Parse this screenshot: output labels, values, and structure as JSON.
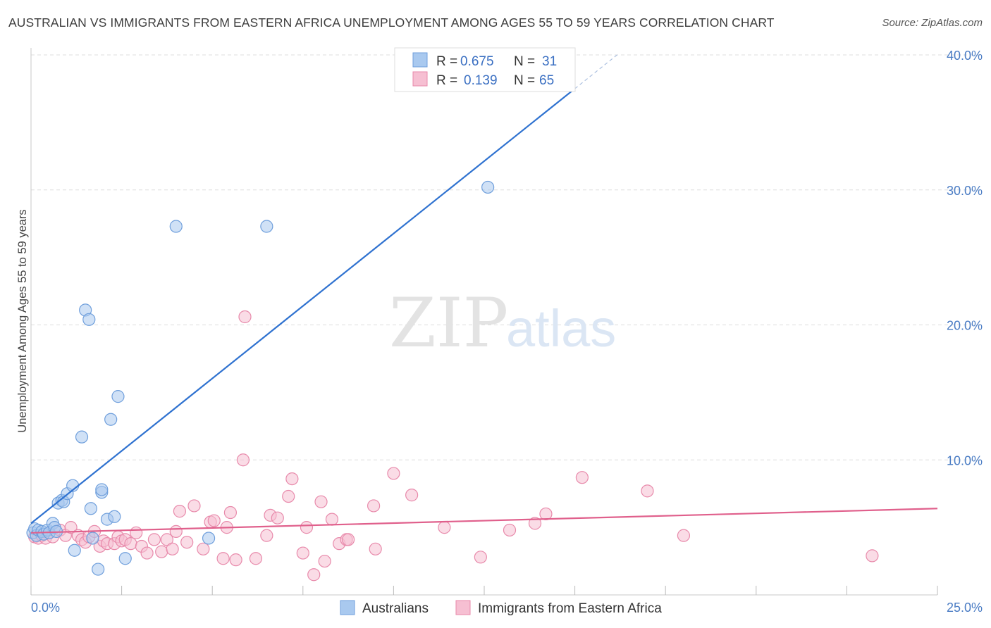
{
  "header": {
    "title": "AUSTRALIAN VS IMMIGRANTS FROM EASTERN AFRICA UNEMPLOYMENT AMONG AGES 55 TO 59 YEARS CORRELATION CHART",
    "source": "Source: ZipAtlas.com"
  },
  "watermark": {
    "zip": "ZIP",
    "atlas": "atlas"
  },
  "colors": {
    "blue_fill": "#a9c9ef",
    "blue_stroke": "#6f9fdc",
    "blue_line": "#2f72d0",
    "pink_fill": "#f6bfd2",
    "pink_stroke": "#e88aab",
    "pink_line": "#e0608c",
    "tick_text": "#4a7cc4",
    "grid": "#dddddd"
  },
  "legend": {
    "r_label": "R =",
    "n_label": "N =",
    "rows": [
      {
        "r": "0.675",
        "n": "31"
      },
      {
        "r": "0.139",
        "n": "65"
      }
    ]
  },
  "chart_data": {
    "type": "scatter",
    "title": "AUSTRALIAN VS IMMIGRANTS FROM EASTERN AFRICA UNEMPLOYMENT AMONG AGES 55 TO 59 YEARS CORRELATION CHART",
    "xlabel": "",
    "ylabel": "Unemployment Among Ages 55 to 59 years",
    "xlim": [
      0,
      25
    ],
    "ylim": [
      0,
      40
    ],
    "x_tick_labels": [
      "0.0%",
      "25.0%"
    ],
    "y_ticks": [
      10,
      20,
      30,
      40
    ],
    "y_tick_labels": [
      "10.0%",
      "20.0%",
      "30.0%",
      "40.0%"
    ],
    "grid": true,
    "legend_position": "top-center",
    "series": [
      {
        "name": "Australians",
        "r": 0.675,
        "n": 31,
        "trend": {
          "x0": 0,
          "y0": 5.3,
          "x1": 15.0,
          "y1": 37.5,
          "dashed_to_x": 16.2
        },
        "points": [
          [
            0.05,
            4.6
          ],
          [
            0.1,
            4.9
          ],
          [
            0.15,
            4.4
          ],
          [
            0.2,
            4.8
          ],
          [
            0.3,
            4.7
          ],
          [
            0.35,
            4.5
          ],
          [
            0.45,
            4.8
          ],
          [
            0.5,
            4.6
          ],
          [
            0.6,
            5.3
          ],
          [
            0.65,
            5.0
          ],
          [
            0.7,
            4.7
          ],
          [
            0.75,
            6.8
          ],
          [
            0.85,
            7.0
          ],
          [
            0.9,
            6.9
          ],
          [
            1.0,
            7.5
          ],
          [
            1.15,
            8.1
          ],
          [
            1.2,
            3.3
          ],
          [
            1.4,
            11.7
          ],
          [
            1.5,
            21.1
          ],
          [
            1.6,
            20.4
          ],
          [
            1.65,
            6.4
          ],
          [
            1.7,
            4.2
          ],
          [
            1.85,
            1.9
          ],
          [
            1.95,
            7.6
          ],
          [
            1.95,
            7.8
          ],
          [
            2.1,
            5.6
          ],
          [
            2.2,
            13.0
          ],
          [
            2.3,
            5.8
          ],
          [
            2.4,
            14.7
          ],
          [
            2.6,
            2.7
          ],
          [
            4.0,
            27.3
          ],
          [
            4.9,
            4.2
          ],
          [
            6.5,
            27.3
          ],
          [
            12.6,
            30.2
          ]
        ]
      },
      {
        "name": "Immigrants from Eastern Africa",
        "r": 0.139,
        "n": 65,
        "trend": {
          "x0": 0,
          "y0": 4.6,
          "x1": 25.0,
          "y1": 6.4
        },
        "points": [
          [
            0.1,
            4.3
          ],
          [
            0.2,
            4.2
          ],
          [
            0.3,
            4.4
          ],
          [
            0.4,
            4.2
          ],
          [
            0.5,
            4.6
          ],
          [
            0.6,
            4.3
          ],
          [
            0.8,
            4.8
          ],
          [
            0.95,
            4.4
          ],
          [
            1.1,
            5.0
          ],
          [
            1.3,
            4.4
          ],
          [
            1.4,
            4.1
          ],
          [
            1.5,
            3.9
          ],
          [
            1.6,
            4.3
          ],
          [
            1.75,
            4.7
          ],
          [
            1.9,
            3.6
          ],
          [
            2.0,
            4.0
          ],
          [
            2.1,
            3.8
          ],
          [
            2.3,
            3.8
          ],
          [
            2.4,
            4.3
          ],
          [
            2.5,
            4.0
          ],
          [
            2.6,
            4.1
          ],
          [
            2.75,
            3.8
          ],
          [
            2.9,
            4.6
          ],
          [
            3.05,
            3.6
          ],
          [
            3.2,
            3.1
          ],
          [
            3.4,
            4.1
          ],
          [
            3.6,
            3.2
          ],
          [
            3.75,
            4.1
          ],
          [
            3.9,
            3.4
          ],
          [
            4.0,
            4.7
          ],
          [
            4.1,
            6.2
          ],
          [
            4.3,
            3.9
          ],
          [
            4.5,
            6.6
          ],
          [
            4.75,
            3.4
          ],
          [
            4.95,
            5.4
          ],
          [
            5.05,
            5.5
          ],
          [
            5.3,
            2.7
          ],
          [
            5.4,
            5.0
          ],
          [
            5.5,
            6.1
          ],
          [
            5.65,
            2.6
          ],
          [
            5.85,
            10.0
          ],
          [
            6.2,
            2.7
          ],
          [
            6.5,
            4.4
          ],
          [
            6.6,
            5.9
          ],
          [
            6.8,
            5.7
          ],
          [
            7.1,
            7.3
          ],
          [
            7.2,
            8.6
          ],
          [
            7.5,
            3.1
          ],
          [
            7.6,
            5.0
          ],
          [
            7.8,
            1.5
          ],
          [
            8.0,
            6.9
          ],
          [
            8.1,
            2.5
          ],
          [
            8.3,
            5.6
          ],
          [
            8.5,
            3.8
          ],
          [
            8.7,
            4.1
          ],
          [
            8.75,
            4.1
          ],
          [
            9.5,
            3.4
          ],
          [
            9.45,
            6.6
          ],
          [
            10.0,
            9.0
          ],
          [
            10.5,
            7.4
          ],
          [
            11.4,
            5.0
          ],
          [
            12.4,
            2.8
          ],
          [
            13.2,
            4.8
          ],
          [
            13.9,
            5.3
          ],
          [
            14.2,
            6.0
          ],
          [
            15.2,
            8.7
          ],
          [
            17.0,
            7.7
          ],
          [
            18.0,
            4.4
          ],
          [
            23.2,
            2.9
          ],
          [
            5.9,
            20.6
          ]
        ]
      }
    ]
  }
}
